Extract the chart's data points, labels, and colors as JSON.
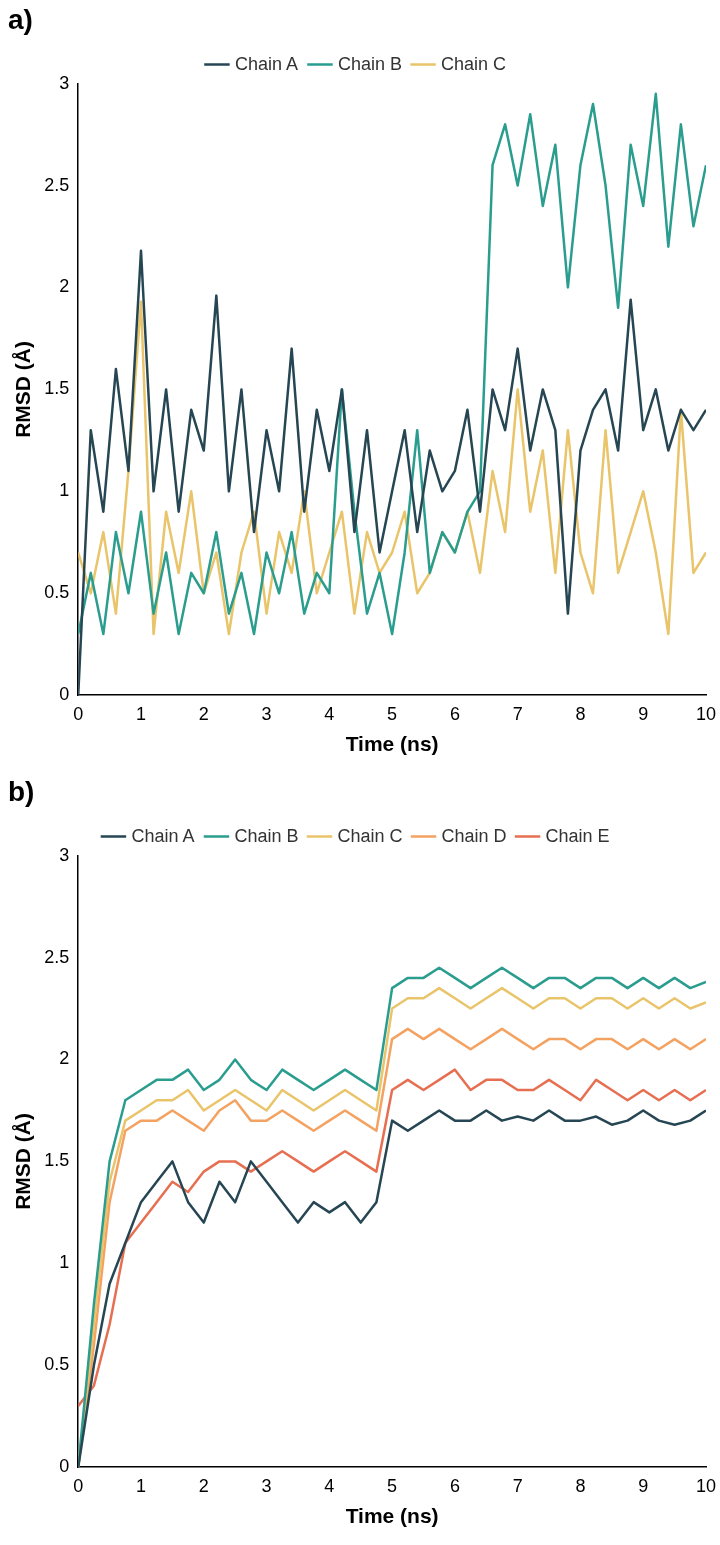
{
  "chart_data": [
    {
      "type": "line",
      "title": "a)",
      "xlabel": "Time (ns)",
      "ylabel": "RMSD (Å)",
      "legend": "top",
      "grid": false,
      "marker": "none",
      "line_style": "solid",
      "xlim": [
        0,
        10
      ],
      "xticks": [
        0,
        1,
        2,
        3,
        4,
        5,
        6,
        7,
        8,
        9,
        10
      ],
      "ylim": [
        0,
        3
      ],
      "yticks": [
        0,
        0.5,
        1,
        1.5,
        2,
        2.5,
        3
      ],
      "x": [
        0,
        0.2,
        0.4,
        0.6,
        0.8,
        1,
        1.2,
        1.4,
        1.6,
        1.8,
        2,
        2.2,
        2.4,
        2.6,
        2.8,
        3,
        3.2,
        3.4,
        3.6,
        3.8,
        4,
        4.2,
        4.4,
        4.6,
        4.8,
        5,
        5.2,
        5.4,
        5.6,
        5.8,
        6,
        6.2,
        6.4,
        6.6,
        6.8,
        7,
        7.2,
        7.4,
        7.6,
        7.8,
        8,
        8.2,
        8.4,
        8.6,
        8.8,
        9,
        9.2,
        9.4,
        9.6,
        9.8,
        10
      ],
      "series": [
        {
          "name": "Chain A",
          "color": "#264653",
          "values": [
            0,
            1.3,
            0.9,
            1.6,
            1.1,
            2.18,
            1.0,
            1.5,
            0.9,
            1.4,
            1.2,
            1.96,
            1.0,
            1.5,
            0.8,
            1.3,
            1.0,
            1.7,
            0.9,
            1.4,
            1.1,
            1.5,
            0.8,
            1.3,
            0.7,
            1.0,
            1.3,
            0.8,
            1.2,
            1.0,
            1.1,
            1.4,
            0.9,
            1.5,
            1.3,
            1.7,
            1.2,
            1.5,
            1.3,
            0.4,
            1.2,
            1.4,
            1.5,
            1.2,
            1.94,
            1.3,
            1.5,
            1.2,
            1.4,
            1.3,
            1.4
          ]
        },
        {
          "name": "Chain B",
          "color": "#2a9d8f",
          "values": [
            0.3,
            0.6,
            0.3,
            0.8,
            0.5,
            0.9,
            0.4,
            0.7,
            0.3,
            0.6,
            0.5,
            0.8,
            0.4,
            0.6,
            0.3,
            0.7,
            0.5,
            0.8,
            0.4,
            0.6,
            0.5,
            1.5,
            0.9,
            0.4,
            0.6,
            0.3,
            0.7,
            1.3,
            0.6,
            0.8,
            0.7,
            0.9,
            1.0,
            2.6,
            2.8,
            2.5,
            2.85,
            2.4,
            2.7,
            2.0,
            2.6,
            2.9,
            2.5,
            1.9,
            2.7,
            2.4,
            2.95,
            2.2,
            2.8,
            2.3,
            2.6
          ]
        },
        {
          "name": "Chain C",
          "color": "#e9c46a",
          "values": [
            0.7,
            0.5,
            0.8,
            0.4,
            1.1,
            1.93,
            0.3,
            0.9,
            0.6,
            1.0,
            0.5,
            0.7,
            0.3,
            0.7,
            0.9,
            0.4,
            0.8,
            0.6,
            1.0,
            0.5,
            0.7,
            0.9,
            0.4,
            0.8,
            0.6,
            0.7,
            0.9,
            0.5,
            0.6,
            0.8,
            0.7,
            0.9,
            0.6,
            1.1,
            0.8,
            1.5,
            0.9,
            1.2,
            0.6,
            1.3,
            0.7,
            0.5,
            1.3,
            0.6,
            0.8,
            1.0,
            0.7,
            0.3,
            1.4,
            0.6,
            0.7
          ]
        }
      ]
    },
    {
      "type": "line",
      "title": "b)",
      "xlabel": "Time (ns)",
      "ylabel": "RMSD (Å)",
      "legend": "top",
      "grid": false,
      "marker": "none",
      "line_style": "solid",
      "xlim": [
        0,
        10
      ],
      "xticks": [
        0,
        1,
        2,
        3,
        4,
        5,
        6,
        7,
        8,
        9,
        10
      ],
      "ylim": [
        0,
        3
      ],
      "yticks": [
        0,
        0.5,
        1,
        1.5,
        2,
        2.5,
        3
      ],
      "x": [
        0,
        0.25,
        0.5,
        0.75,
        1,
        1.25,
        1.5,
        1.75,
        2,
        2.25,
        2.5,
        2.75,
        3,
        3.25,
        3.5,
        3.75,
        4,
        4.25,
        4.5,
        4.75,
        5,
        5.25,
        5.5,
        5.75,
        6,
        6.25,
        6.5,
        6.75,
        7,
        7.25,
        7.5,
        7.75,
        8,
        8.25,
        8.5,
        8.75,
        9,
        9.25,
        9.5,
        9.75,
        10
      ],
      "series": [
        {
          "name": "Chain A",
          "color": "#264653",
          "values": [
            0,
            0.5,
            0.9,
            1.1,
            1.3,
            1.4,
            1.5,
            1.3,
            1.2,
            1.4,
            1.3,
            1.5,
            1.4,
            1.3,
            1.2,
            1.3,
            1.25,
            1.3,
            1.2,
            1.3,
            1.7,
            1.65,
            1.7,
            1.75,
            1.7,
            1.7,
            1.75,
            1.7,
            1.72,
            1.7,
            1.75,
            1.7,
            1.7,
            1.72,
            1.68,
            1.7,
            1.75,
            1.7,
            1.68,
            1.7,
            1.75
          ]
        },
        {
          "name": "Chain B",
          "color": "#2a9d8f",
          "values": [
            0,
            0.8,
            1.5,
            1.8,
            1.85,
            1.9,
            1.9,
            1.95,
            1.85,
            1.9,
            2.0,
            1.9,
            1.85,
            1.95,
            1.9,
            1.85,
            1.9,
            1.95,
            1.9,
            1.85,
            2.35,
            2.4,
            2.4,
            2.45,
            2.4,
            2.35,
            2.4,
            2.45,
            2.4,
            2.35,
            2.4,
            2.4,
            2.35,
            2.4,
            2.4,
            2.35,
            2.4,
            2.35,
            2.4,
            2.35,
            2.38
          ]
        },
        {
          "name": "Chain C",
          "color": "#e9c46a",
          "values": [
            0,
            0.7,
            1.4,
            1.7,
            1.75,
            1.8,
            1.8,
            1.85,
            1.75,
            1.8,
            1.85,
            1.8,
            1.75,
            1.85,
            1.8,
            1.75,
            1.8,
            1.85,
            1.8,
            1.75,
            2.25,
            2.3,
            2.3,
            2.35,
            2.3,
            2.25,
            2.3,
            2.35,
            2.3,
            2.25,
            2.3,
            2.3,
            2.25,
            2.3,
            2.3,
            2.25,
            2.3,
            2.25,
            2.3,
            2.25,
            2.28
          ]
        },
        {
          "name": "Chain D",
          "color": "#f4a261",
          "values": [
            0,
            0.6,
            1.3,
            1.65,
            1.7,
            1.7,
            1.75,
            1.7,
            1.65,
            1.75,
            1.8,
            1.7,
            1.7,
            1.75,
            1.7,
            1.65,
            1.7,
            1.75,
            1.7,
            1.65,
            2.1,
            2.15,
            2.1,
            2.15,
            2.1,
            2.05,
            2.1,
            2.15,
            2.1,
            2.05,
            2.1,
            2.1,
            2.05,
            2.1,
            2.1,
            2.05,
            2.1,
            2.05,
            2.1,
            2.05,
            2.1
          ]
        },
        {
          "name": "Chain E",
          "color": "#e76f51",
          "values": [
            0.3,
            0.4,
            0.7,
            1.1,
            1.2,
            1.3,
            1.4,
            1.35,
            1.45,
            1.5,
            1.5,
            1.45,
            1.5,
            1.55,
            1.5,
            1.45,
            1.5,
            1.55,
            1.5,
            1.45,
            1.85,
            1.9,
            1.85,
            1.9,
            1.95,
            1.85,
            1.9,
            1.9,
            1.85,
            1.85,
            1.9,
            1.85,
            1.8,
            1.9,
            1.85,
            1.8,
            1.85,
            1.8,
            1.85,
            1.8,
            1.85
          ]
        }
      ]
    }
  ]
}
